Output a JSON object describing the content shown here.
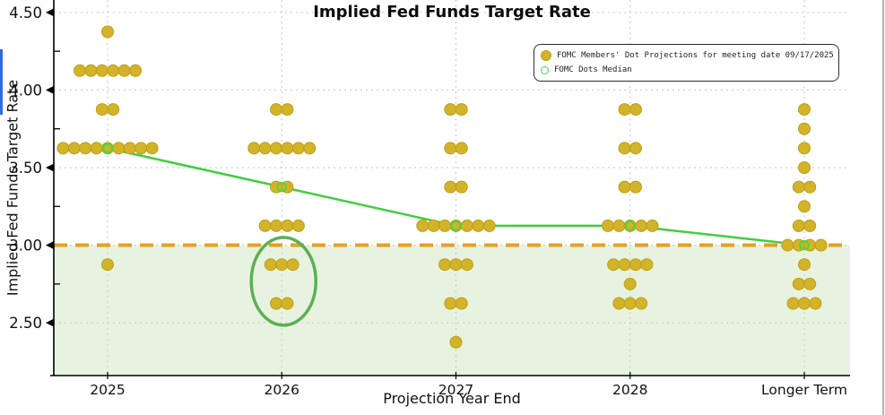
{
  "legend": {
    "items": [
      {
        "label": "FOMC Members' Dot Projections for meeting date 09/17/2025",
        "marker": "filled-dot"
      },
      {
        "label": "FOMC Dots Median",
        "marker": "open-circle"
      }
    ]
  },
  "chart_data": {
    "type": "scatter",
    "title": "Implied Fed Funds Target Rate",
    "xlabel": "Projection Year End",
    "ylabel": "Implied Fed Funds Target Rate",
    "categories": [
      "2025",
      "2026",
      "2027",
      "2028",
      "Longer Term"
    ],
    "ytick_labels": [
      "4.50",
      "4.00",
      "3.50",
      "3.00",
      "2.50"
    ],
    "ytick_values": [
      4.5,
      4.0,
      3.5,
      3.0,
      2.5
    ],
    "minor_ticks": [
      4.25,
      3.75,
      3.25,
      2.75
    ],
    "ylim": [
      2.16,
      4.58
    ],
    "grid": true,
    "legend_position": "top-right",
    "dots": [
      {
        "category": "2025",
        "points": [
          {
            "value": 4.375,
            "count": 1
          },
          {
            "value": 4.125,
            "count": 6
          },
          {
            "value": 3.875,
            "count": 2
          },
          {
            "value": 3.625,
            "count": 9
          },
          {
            "value": 2.875,
            "count": 1
          }
        ]
      },
      {
        "category": "2026",
        "points": [
          {
            "value": 3.875,
            "count": 2
          },
          {
            "value": 3.625,
            "count": 6
          },
          {
            "value": 3.375,
            "count": 2
          },
          {
            "value": 3.125,
            "count": 4
          },
          {
            "value": 2.875,
            "count": 3
          },
          {
            "value": 2.625,
            "count": 2
          }
        ]
      },
      {
        "category": "2027",
        "points": [
          {
            "value": 3.875,
            "count": 2
          },
          {
            "value": 3.625,
            "count": 2
          },
          {
            "value": 3.375,
            "count": 2
          },
          {
            "value": 3.125,
            "count": 7
          },
          {
            "value": 2.875,
            "count": 3
          },
          {
            "value": 2.625,
            "count": 2
          },
          {
            "value": 2.375,
            "count": 1
          }
        ]
      },
      {
        "category": "2028",
        "points": [
          {
            "value": 3.875,
            "count": 2
          },
          {
            "value": 3.625,
            "count": 2
          },
          {
            "value": 3.375,
            "count": 2
          },
          {
            "value": 3.125,
            "count": 5
          },
          {
            "value": 2.875,
            "count": 4
          },
          {
            "value": 2.75,
            "count": 1
          },
          {
            "value": 2.625,
            "count": 3
          }
        ]
      },
      {
        "category": "Longer Term",
        "points": [
          {
            "value": 3.875,
            "count": 1
          },
          {
            "value": 3.75,
            "count": 1
          },
          {
            "value": 3.625,
            "count": 1
          },
          {
            "value": 3.5,
            "count": 1
          },
          {
            "value": 3.375,
            "count": 2
          },
          {
            "value": 3.25,
            "count": 1
          },
          {
            "value": 3.125,
            "count": 2
          },
          {
            "value": 3.0,
            "count": 4
          },
          {
            "value": 2.875,
            "count": 1
          },
          {
            "value": 2.75,
            "count": 2
          },
          {
            "value": 2.625,
            "count": 3
          }
        ]
      }
    ],
    "median_series": {
      "name": "FOMC Dots Median",
      "values": [
        3.625,
        3.375,
        3.125,
        3.125,
        3.0
      ]
    },
    "threshold": {
      "value": 3.0,
      "style": "dashed"
    },
    "shaded_region": {
      "from": 3.0,
      "to": 2.16
    },
    "ellipse_annotation": {
      "category": "2026",
      "value_center": 2.75,
      "covers_values": [
        2.875,
        2.625
      ]
    },
    "colors": {
      "dot": "#d2b329",
      "dot_edge": "#bda014",
      "median": "#3fcf3f",
      "median_ring": "#47d847",
      "threshold": "#e8a01d",
      "region": "#e7f3e0",
      "ellipse": "#5bb054",
      "grid": "#c6c6c6",
      "axis": "#000000"
    }
  }
}
